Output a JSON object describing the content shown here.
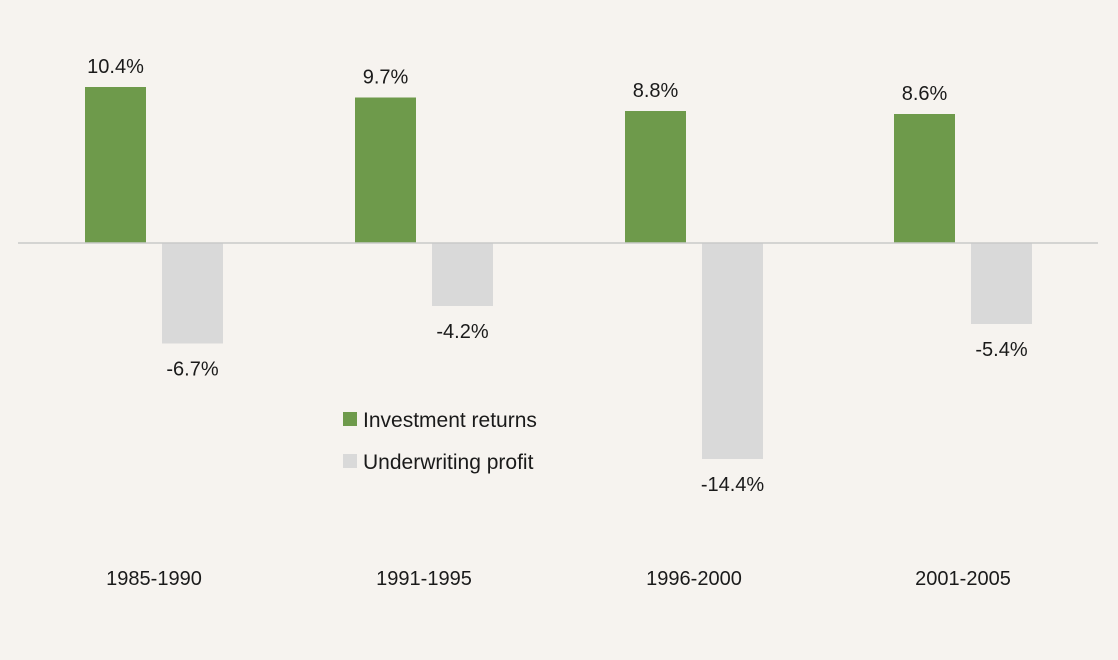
{
  "chart_data": {
    "type": "bar",
    "title": "",
    "xlabel": "",
    "ylabel": "",
    "categories": [
      "1985-1990",
      "1991-1995",
      "1996-2000",
      "2001-2005"
    ],
    "series": [
      {
        "name": "Investment returns",
        "color": "#6e9a4b",
        "values": [
          10.4,
          9.7,
          8.8,
          8.6
        ],
        "labels": [
          "10.4%",
          "9.7%",
          "8.8%",
          "8.6%"
        ]
      },
      {
        "name": "Underwriting profit",
        "color": "#d9d9d9",
        "values": [
          -6.7,
          -4.2,
          -14.4,
          -5.4
        ],
        "labels": [
          "-6.7%",
          "-4.2%",
          "-14.4%",
          "-5.4%"
        ]
      }
    ],
    "ylim": [
      -16,
      16
    ],
    "grid": false,
    "legend_position": "center"
  },
  "colors": {
    "background": "#f6f3ef",
    "zero_line": "#c9c9c9"
  }
}
